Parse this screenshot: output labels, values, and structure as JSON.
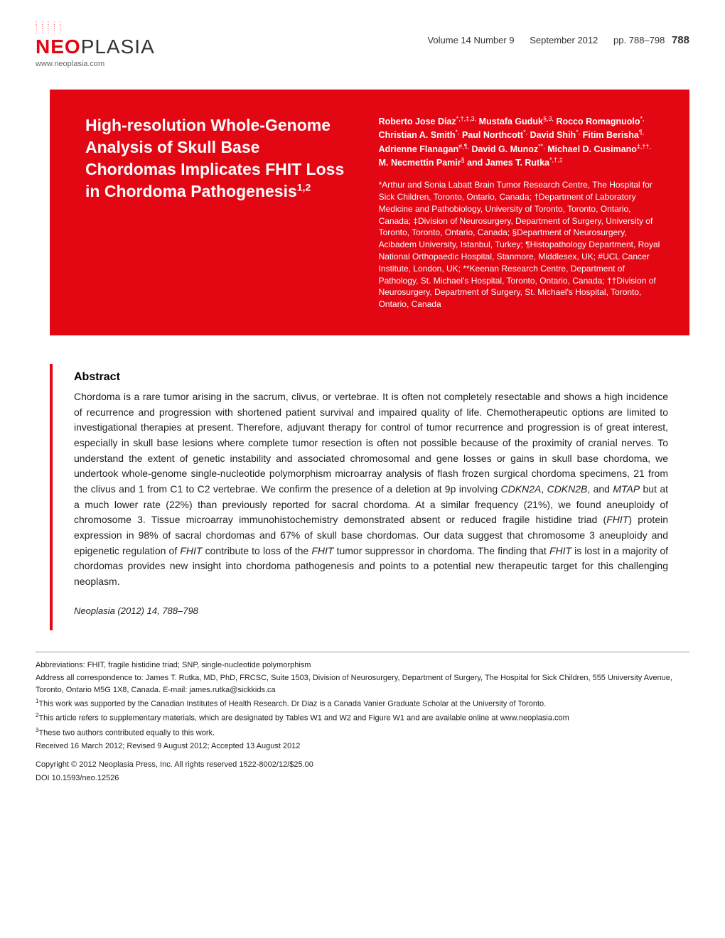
{
  "header": {
    "logo_text_red": "NEO",
    "logo_text_black": "PLASIA",
    "url": "www.neoplasia.com",
    "volume": "Volume 14 Number 9",
    "date": "September 2012",
    "pages": "pp. 788–798",
    "page_num": "788"
  },
  "colors": {
    "brand_red": "#e30613",
    "text": "#000000",
    "bg": "#ffffff"
  },
  "article": {
    "title": "High-resolution Whole-Genome Analysis of Skull Base Chordomas Implicates FHIT Loss in Chordoma Pathogenesis",
    "title_sup": "1,2",
    "authors_html": "Roberto Jose Diaz*,†,‡,3, Mustafa Guduk§,3, Rocco Romagnuolo*, Christian A. Smith*, Paul Northcott*, David Shih*, Fitim Berisha¶, Adrienne Flanagan#,¶, David G. Munoz**, Michael D. Cusimano‡,††, M. Necmettin Pamir§ and James T. Rutka*,†,‡",
    "affiliations": "*Arthur and Sonia Labatt Brain Tumor Research Centre, The Hospital for Sick Children, Toronto, Ontario, Canada; †Department of Laboratory Medicine and Pathobiology, University of Toronto, Toronto, Ontario, Canada; ‡Division of Neurosurgery, Department of Surgery, University of Toronto, Toronto, Ontario, Canada; §Department of Neurosurgery, Acibadem University, Istanbul, Turkey; ¶Histopathology Department, Royal National Orthopaedic Hospital, Stanmore, Middlesex, UK; #UCL Cancer Institute, London, UK; **Keenan Research Centre, Department of Pathology, St. Michael's Hospital, Toronto, Ontario, Canada; ††Division of Neurosurgery, Department of Surgery, St. Michael's Hospital, Toronto, Ontario, Canada"
  },
  "abstract": {
    "heading": "Abstract",
    "body": "Chordoma is a rare tumor arising in the sacrum, clivus, or vertebrae. It is often not completely resectable and shows a high incidence of recurrence and progression with shortened patient survival and impaired quality of life. Chemotherapeutic options are limited to investigational therapies at present. Therefore, adjuvant therapy for control of tumor recurrence and progression is of great interest, especially in skull base lesions where complete tumor resection is often not possible because of the proximity of cranial nerves. To understand the extent of genetic instability and associated chromosomal and gene losses or gains in skull base chordoma, we undertook whole-genome single-nucleotide polymorphism microarray analysis of flash frozen surgical chordoma specimens, 21 from the clivus and 1 from C1 to C2 vertebrae. We confirm the presence of a deletion at 9p involving CDKN2A, CDKN2B, and MTAP but at a much lower rate (22%) than previously reported for sacral chordoma. At a similar frequency (21%), we found aneuploidy of chromosome 3. Tissue microarray immunohistochemistry demonstrated absent or reduced fragile histidine triad (FHIT) protein expression in 98% of sacral chordomas and 67% of skull base chordomas. Our data suggest that chromosome 3 aneuploidy and epigenetic regulation of FHIT contribute to loss of the FHIT tumor suppressor in chordoma. The finding that FHIT is lost in a majority of chordomas provides new insight into chordoma pathogenesis and points to a potential new therapeutic target for this challenging neoplasm.",
    "citation": "Neoplasia (2012) 14, 788–798"
  },
  "footnotes": {
    "abbrev": "Abbreviations: FHIT, fragile histidine triad; SNP, single-nucleotide polymorphism",
    "address": "Address all correspondence to: James T. Rutka, MD, PhD, FRCSC, Suite 1503, Division of Neurosurgery, Department of Surgery, The Hospital for Sick Children, 555 University Avenue, Toronto, Ontario M5G 1X8, Canada. E-mail: james.rutka@sickkids.ca",
    "note1": "This work was supported by the Canadian Institutes of Health Research. Dr Diaz is a Canada Vanier Graduate Scholar at the University of Toronto.",
    "note2": "This article refers to supplementary materials, which are designated by Tables W1 and W2 and Figure W1 and are available online at www.neoplasia.com",
    "note3": "These two authors contributed equally to this work.",
    "dates": "Received 16 March 2012; Revised 9 August 2012; Accepted 13 August 2012",
    "copyright": "Copyright © 2012 Neoplasia Press, Inc. All rights reserved 1522-8002/12/$25.00",
    "doi": "DOI 10.1593/neo.12526"
  }
}
